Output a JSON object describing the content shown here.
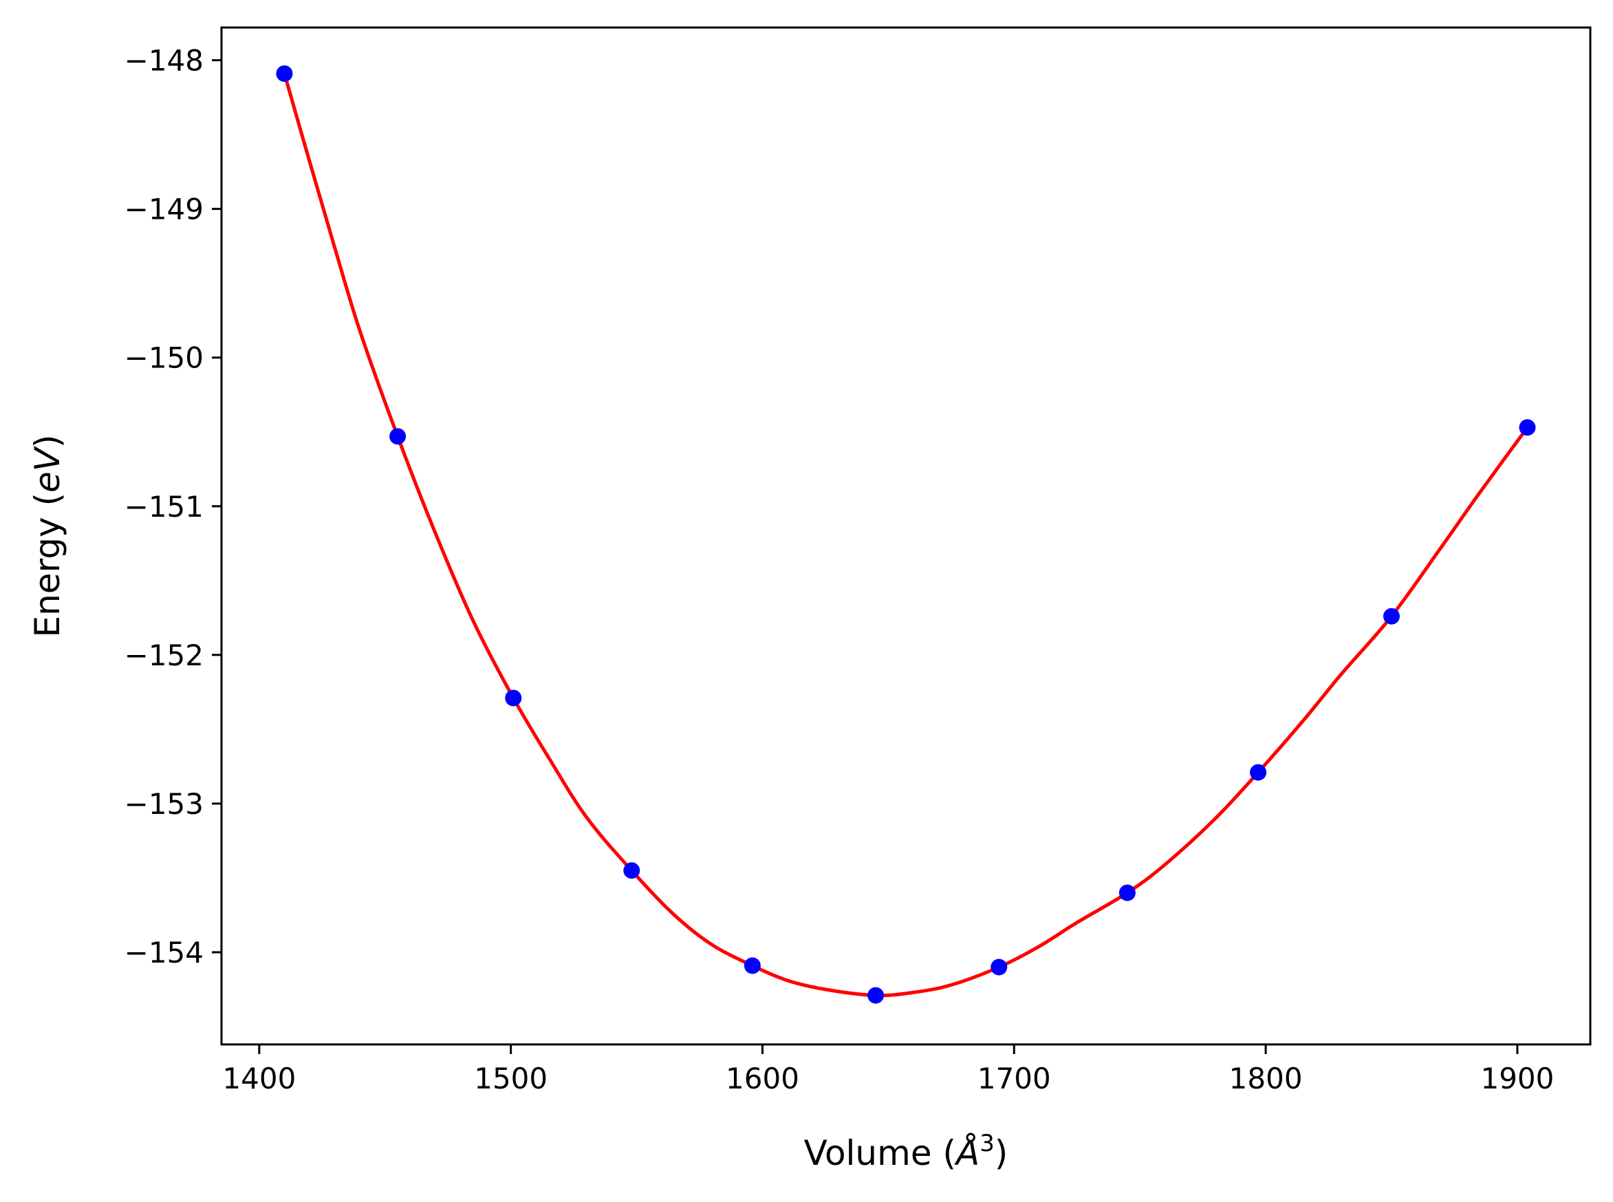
{
  "chart_data": {
    "type": "scatter",
    "xlabel_parts": [
      "Volume (",
      "Å",
      "3",
      ")"
    ],
    "ylabel_parts": [
      "Energy (",
      "eV",
      ")"
    ],
    "xlim": [
      1385,
      1929
    ],
    "ylim": [
      -154.62,
      -147.78
    ],
    "x_ticks": [
      1400,
      1500,
      1600,
      1700,
      1800,
      1900
    ],
    "x_tick_labels": [
      "1400",
      "1500",
      "1600",
      "1700",
      "1800",
      "1900"
    ],
    "y_ticks": [
      -148,
      -149,
      -150,
      -151,
      -152,
      -153,
      -154
    ],
    "y_tick_labels": [
      "−148",
      "−149",
      "−150",
      "−151",
      "−152",
      "−153",
      "−154"
    ],
    "grid": false,
    "series": [
      {
        "kind": "points",
        "color": "#0000ff",
        "x": [
          1410,
          1455,
          1501,
          1548,
          1596,
          1645,
          1694,
          1745,
          1797,
          1850,
          1904
        ],
        "y": [
          -148.09,
          -150.53,
          -152.29,
          -153.45,
          -154.09,
          -154.29,
          -154.1,
          -153.6,
          -152.79,
          -151.74,
          -150.47
        ]
      },
      {
        "kind": "fit-curve",
        "color": "#ff0000",
        "x": [
          1410,
          1420,
          1430,
          1440,
          1455,
          1470,
          1485,
          1501,
          1515,
          1530,
          1548,
          1565,
          1580,
          1596,
          1610,
          1625,
          1645,
          1660,
          1675,
          1694,
          1710,
          1725,
          1745,
          1760,
          1780,
          1797,
          1815,
          1830,
          1850,
          1870,
          1885,
          1904
        ],
        "y": [
          -148.09,
          -148.68,
          -149.26,
          -149.82,
          -150.53,
          -151.18,
          -151.77,
          -152.29,
          -152.69,
          -153.09,
          -153.45,
          -153.75,
          -153.95,
          -154.09,
          -154.19,
          -154.25,
          -154.29,
          -154.27,
          -154.22,
          -154.1,
          -153.96,
          -153.8,
          -153.6,
          -153.41,
          -153.1,
          -152.79,
          -152.44,
          -152.13,
          -151.74,
          -151.27,
          -150.91,
          -150.47
        ]
      }
    ]
  }
}
